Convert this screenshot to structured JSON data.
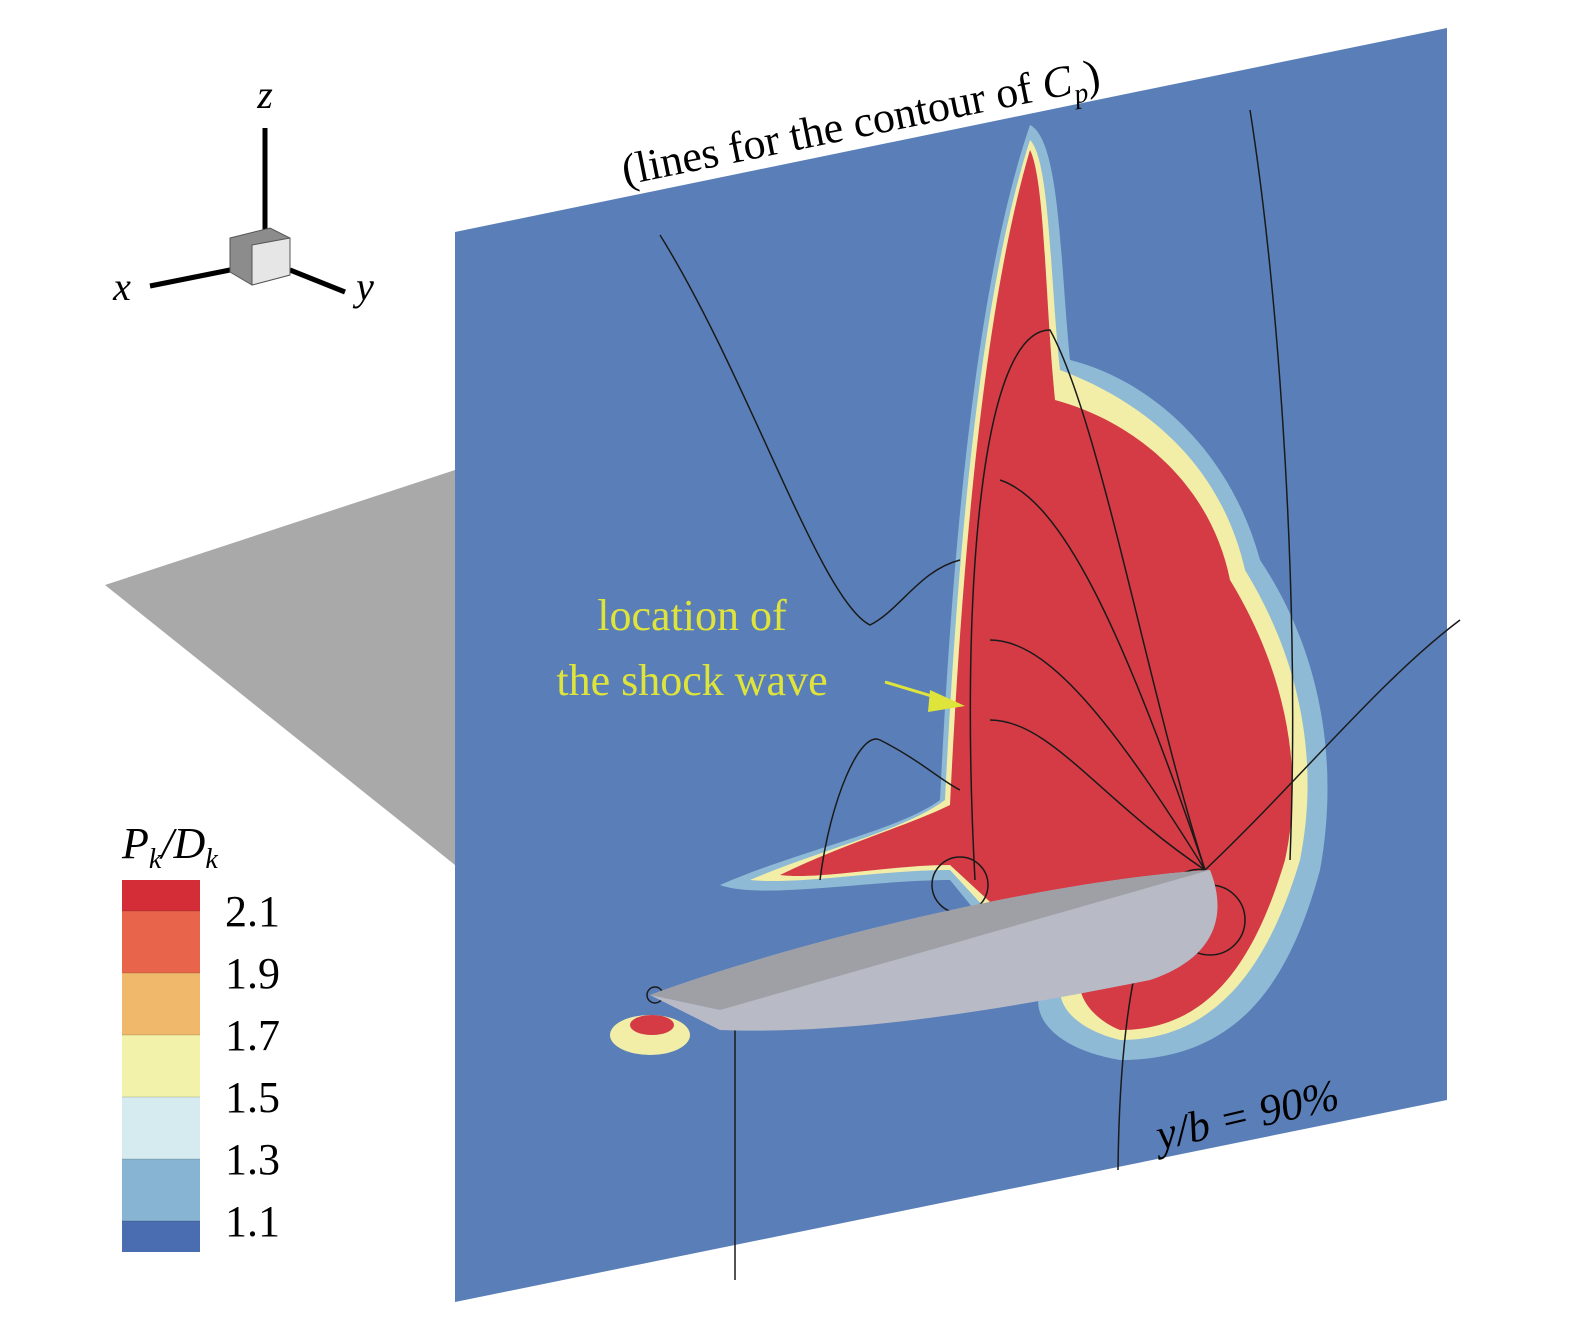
{
  "axes_triad": {
    "x": "x",
    "y": "y",
    "z": "z"
  },
  "title": {
    "text": "(lines for the contour of ",
    "symbol": "C",
    "subscript": "p",
    "close": ")"
  },
  "annotation": {
    "line1": "location of",
    "line2": "the shock wave"
  },
  "plane_label": "y/b = 90%",
  "legend": {
    "title": {
      "p": "P",
      "p_sub": "k",
      "d": "/D",
      "d_sub": "k"
    },
    "levels": [
      2.1,
      1.9,
      1.7,
      1.5,
      1.3,
      1.1
    ],
    "colors": [
      "#d42d38",
      "#e8654b",
      "#f0b86a",
      "#f3f2ab",
      "#d5ebef",
      "#86b4d2",
      "#4a6db2"
    ]
  }
}
